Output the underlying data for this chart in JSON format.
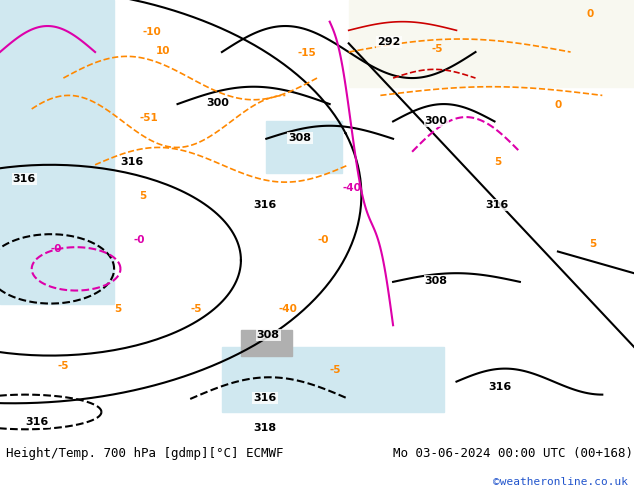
{
  "title_left": "Height/Temp. 700 hPa [gdmp][°C] ECMWF",
  "title_right": "Mo 03-06-2024 00:00 UTC (00+168)",
  "watermark": "©weatheronline.co.uk",
  "bg_color_land": "#c8e6a0",
  "bg_color_sea": "#d0e8f0",
  "bg_color_highland": "#b0b0b0",
  "bg_color_white": "#f0f0f0",
  "bottom_bar_color": "#e8e8e8",
  "text_color_title": "#000000",
  "text_color_watermark": "#2255cc",
  "contour_black_color": "#000000",
  "contour_orange_color": "#ff8800",
  "contour_magenta_color": "#dd00aa",
  "contour_red_color": "#cc0000",
  "figsize": [
    6.34,
    4.9
  ],
  "dpi": 100,
  "font_size_title": 9,
  "font_size_watermark": 8
}
